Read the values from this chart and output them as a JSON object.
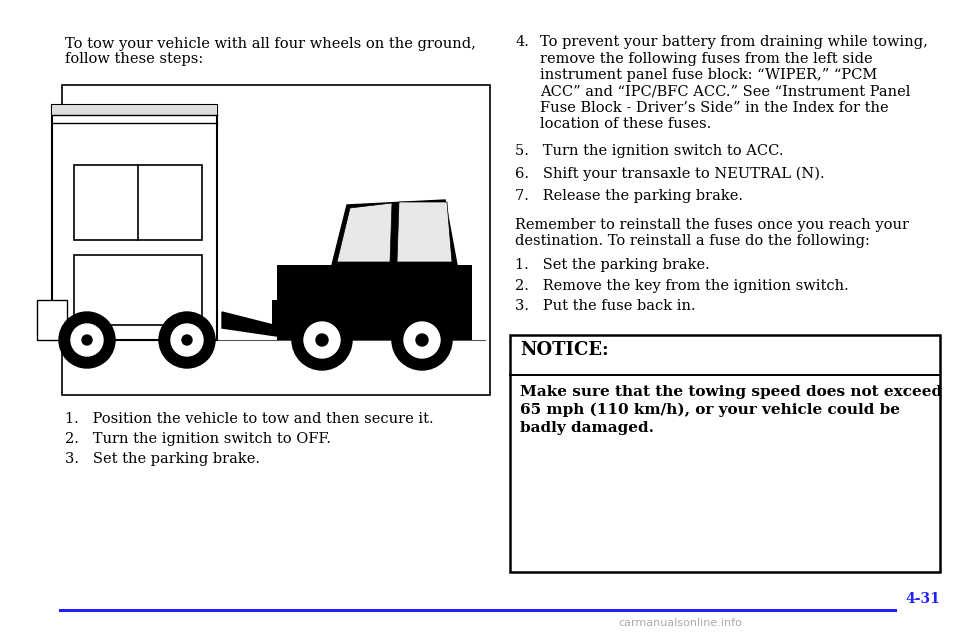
{
  "bg_color": "#ffffff",
  "text_color": "#000000",
  "blue_color": "#2020ff",
  "page_number": "4-31",
  "watermark": "carmanualsonline.info",
  "left_intro_line1": "To tow your vehicle with all four wheels on the ground,",
  "left_intro_line2": "follow these steps:",
  "left_steps": [
    "1.   Position the vehicle to tow and then secure it.",
    "2.   Turn the ignition switch to OFF.",
    "3.   Set the parking brake."
  ],
  "right_step4_num": "4.",
  "right_step4_lines": [
    "To prevent your battery from draining while towing,",
    "remove the following fuses from the left side",
    "instrument panel fuse block: “WIPER,” “PCM",
    "ACC” and “IPC/BFC ACC.” See “Instrument Panel",
    "Fuse Block - Driver’s Side” in the Index for the",
    "location of these fuses."
  ],
  "right_step5": "5.   Turn the ignition switch to ACC.",
  "right_step6": "6.   Shift your transaxle to NEUTRAL (N).",
  "right_step7": "7.   Release the parking brake.",
  "remember_line1": "Remember to reinstall the fuses once you reach your",
  "remember_line2": "destination. To reinstall a fuse do the following:",
  "reinstall_steps": [
    "1.   Set the parking brake.",
    "2.   Remove the key from the ignition switch.",
    "3.   Put the fuse back in."
  ],
  "notice_header": "NOTICE:",
  "notice_body_lines": [
    "Make sure that the towing speed does not exceed",
    "65 mph (110 km/h), or your vehicle could be",
    "badly damaged."
  ],
  "font_size_body": 10.5,
  "font_size_notice_header": 13,
  "font_size_notice_body": 11,
  "font_size_page": 10,
  "font_size_watermark": 8
}
